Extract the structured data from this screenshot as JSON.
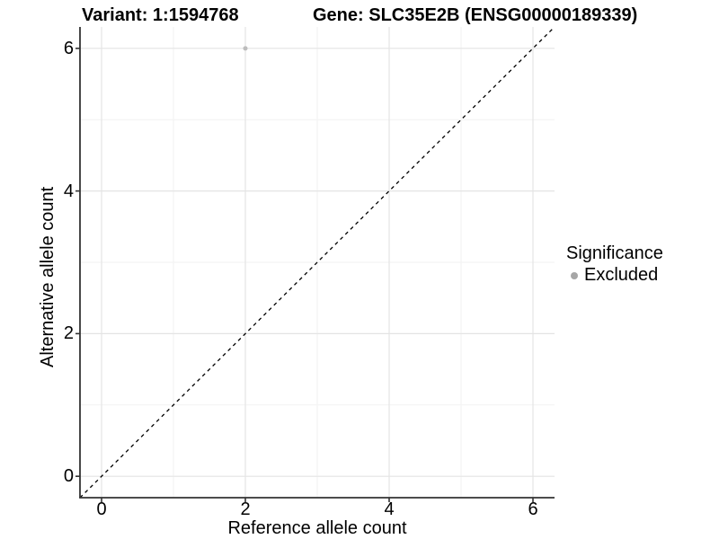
{
  "titles": {
    "variant": "Variant: 1:1594768",
    "gene": "Gene: SLC35E2B (ENSG00000189339)"
  },
  "legend": {
    "title": "Significance",
    "items": [
      {
        "label": "Excluded",
        "color": "#A6A6A6"
      }
    ]
  },
  "chart_data": {
    "type": "scatter",
    "title": "Variant: 1:1594768   Gene: SLC35E2B (ENSG00000189339)",
    "xlabel": "Reference allele count",
    "ylabel": "Alternative allele count",
    "xlim": [
      -0.3,
      6.3
    ],
    "ylim": [
      -0.3,
      6.3
    ],
    "x_ticks": [
      0,
      2,
      4,
      6
    ],
    "x_tick_labels": [
      "0",
      "2",
      "4",
      "6"
    ],
    "y_ticks": [
      0,
      2,
      4,
      6
    ],
    "y_tick_labels": [
      "0",
      "2",
      "4",
      "6"
    ],
    "grid": true,
    "legend_position": "right",
    "series": [
      {
        "name": "Excluded",
        "color": "#BDBDBD",
        "points": [
          {
            "x": 2,
            "y": 6
          }
        ]
      }
    ],
    "reference_line": {
      "style": "dashed",
      "color": "#000000",
      "from": [
        -0.3,
        -0.3
      ],
      "to": [
        6.3,
        6.3
      ]
    },
    "colors": {
      "grid_major": "#E4E4E4",
      "grid_minor": "#F2F2F2",
      "axis": "#333333"
    }
  }
}
